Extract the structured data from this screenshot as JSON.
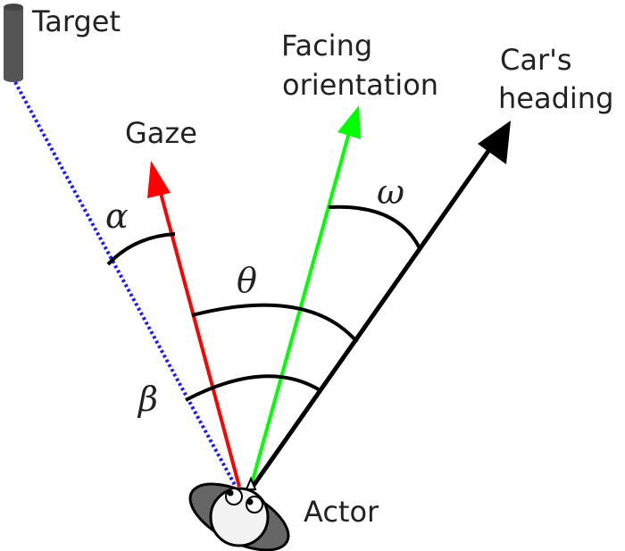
{
  "labels": {
    "target": "Target",
    "gaze": "Gaze",
    "facing_line1": "Facing",
    "facing_line2": "orientation",
    "heading_line1": "Car's",
    "heading_line2": "heading",
    "actor": "Actor"
  },
  "angles": {
    "alpha": "α",
    "theta": "θ",
    "omega": "ω",
    "beta": "β"
  },
  "colors": {
    "gaze": "#ff0000",
    "facing": "#00ff00",
    "heading": "#000000",
    "target_line": "#1a1aff",
    "target_post": "#555555",
    "actor_shoulders": "#666666",
    "actor_head": "#f2f2f2"
  }
}
